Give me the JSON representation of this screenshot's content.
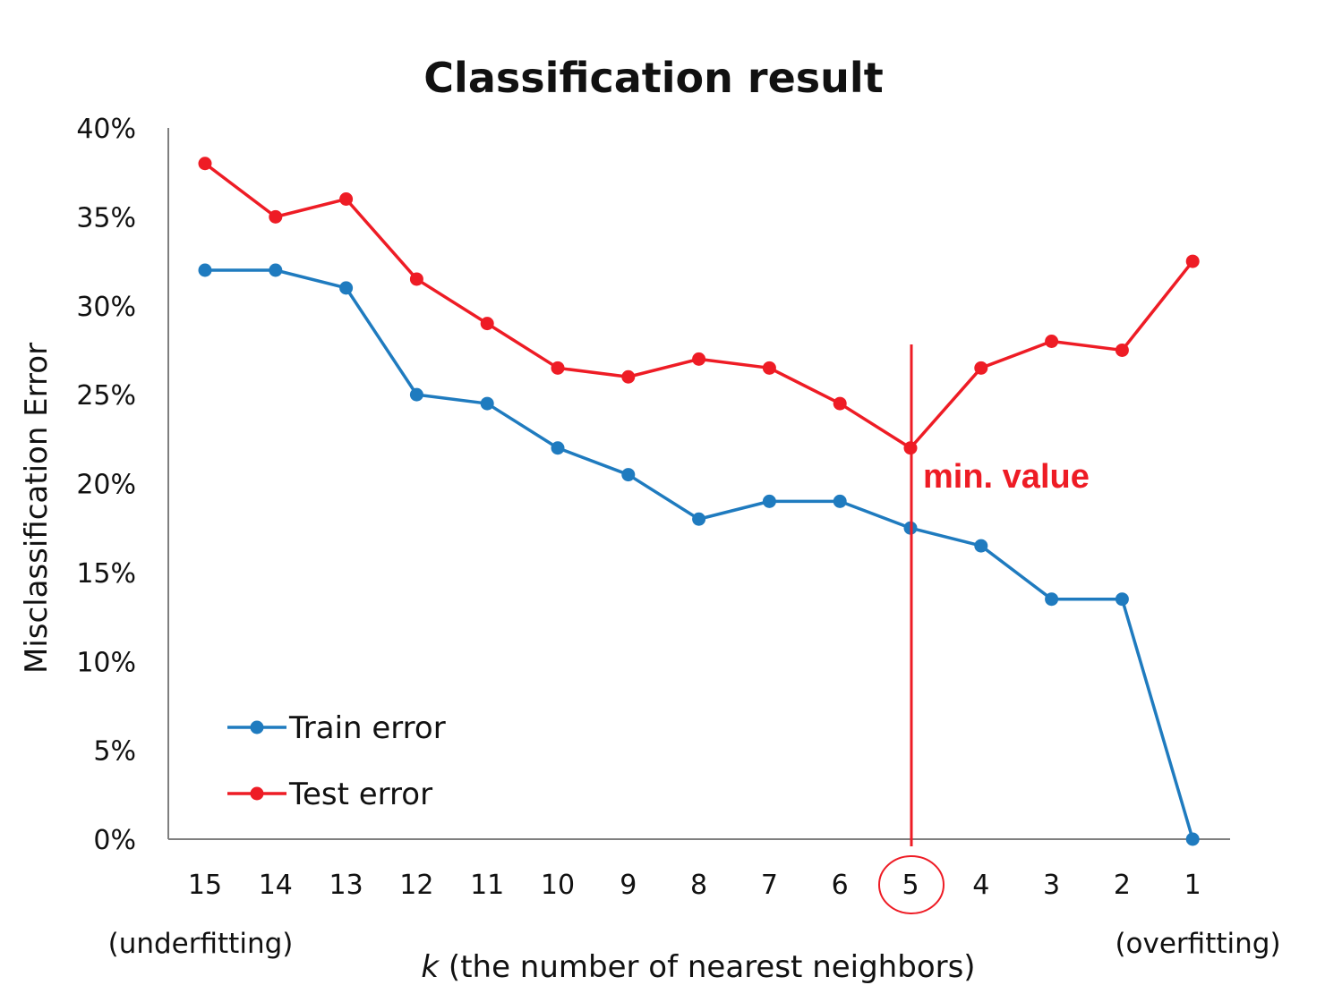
{
  "chart_data": {
    "type": "line",
    "title": "Classification result",
    "xlabel_italic": "k",
    "xlabel_rest": " (the number of nearest neighbors)",
    "ylabel": "Misclassification Error",
    "categories": [
      "15",
      "14",
      "13",
      "12",
      "11",
      "10",
      "9",
      "8",
      "7",
      "6",
      "5",
      "4",
      "3",
      "2",
      "1"
    ],
    "ylim": [
      0,
      40
    ],
    "yticks": [
      "0%",
      "5%",
      "10%",
      "15%",
      "20%",
      "25%",
      "30%",
      "35%",
      "40%"
    ],
    "series": [
      {
        "name": "Train error",
        "color": "#1f7bbf",
        "values": [
          32,
          32,
          31,
          25,
          24.5,
          22,
          20.5,
          18,
          19,
          19,
          17.5,
          16.5,
          13.5,
          13.5,
          0
        ]
      },
      {
        "name": "Test error",
        "color": "#ee1c25",
        "values": [
          38,
          35,
          36,
          31.5,
          29,
          26.5,
          26,
          27,
          26.5,
          24.5,
          22,
          26.5,
          28,
          27.5,
          32.5
        ]
      }
    ],
    "left_note": "(underfitting)",
    "right_note": "(overfitting)",
    "annotation": {
      "text": "min. value",
      "category": "5",
      "color": "#ee1c25"
    },
    "legend_position": "bottom-left",
    "grid": false
  }
}
